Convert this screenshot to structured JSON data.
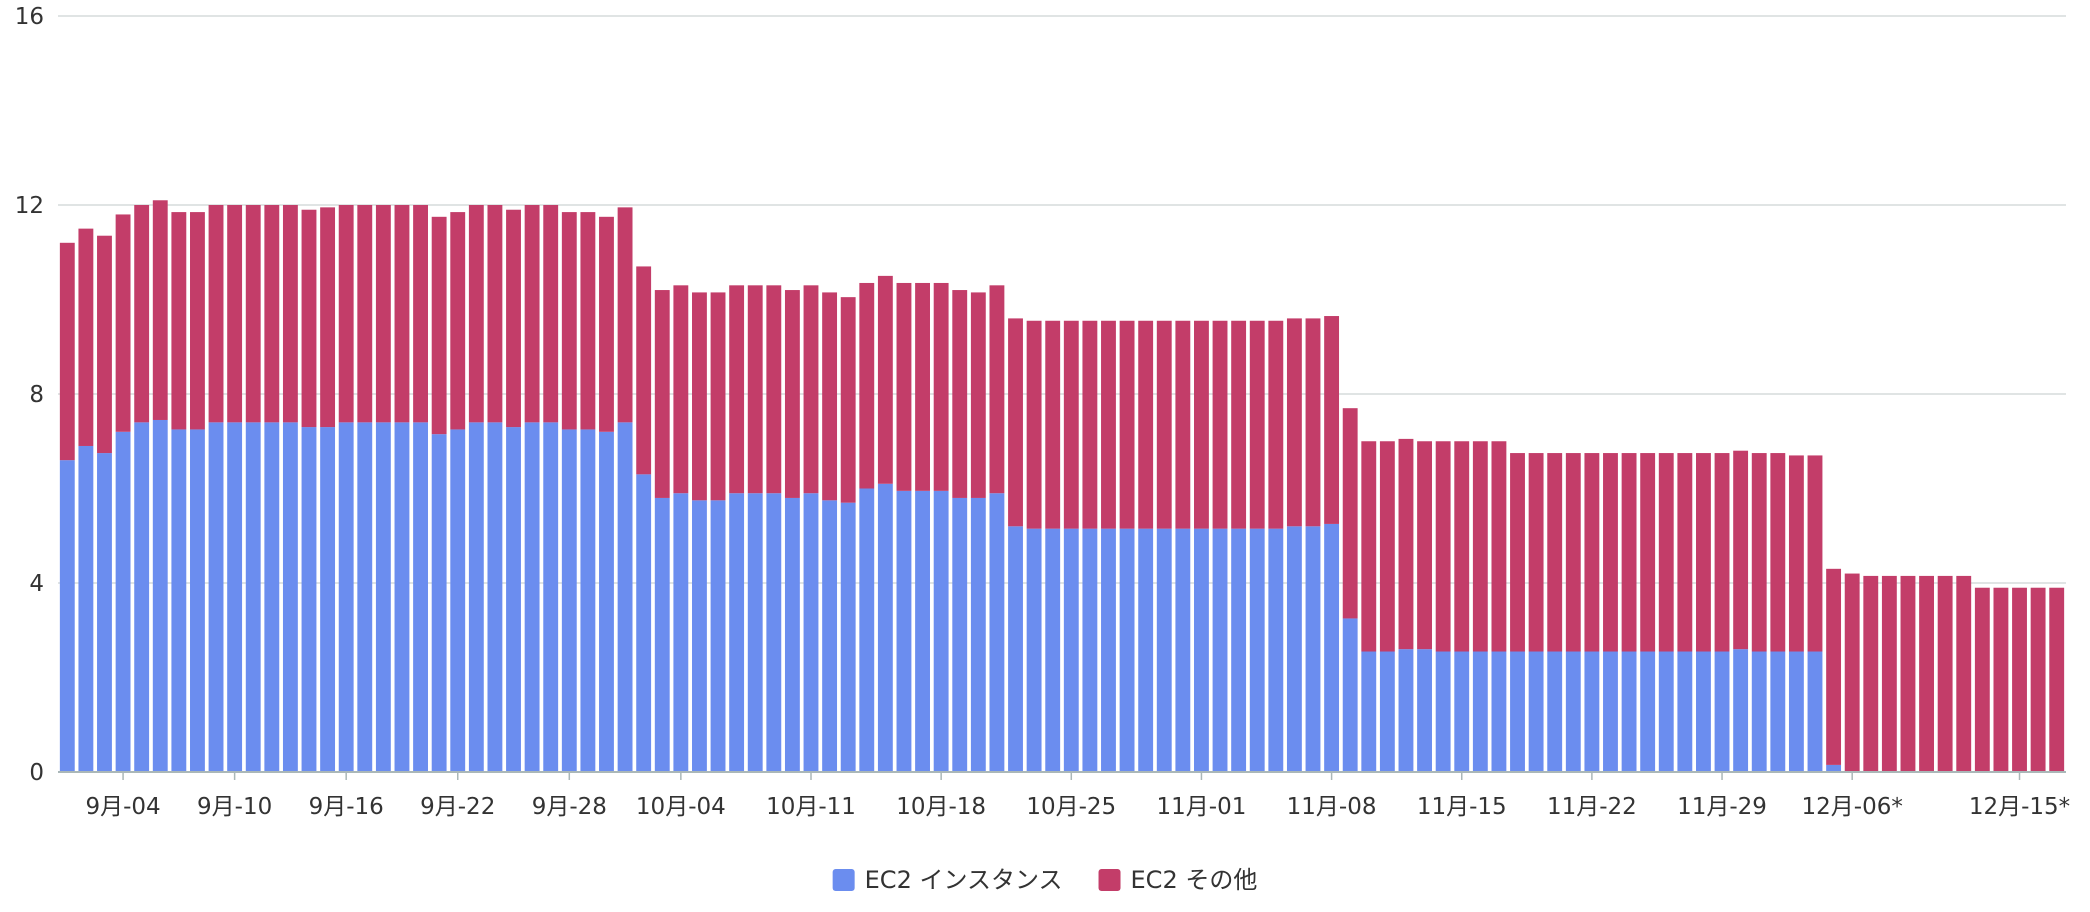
{
  "chart_data": {
    "type": "bar",
    "stacked": true,
    "ylim": [
      0,
      16
    ],
    "yticks": [
      0,
      4,
      8,
      12,
      16
    ],
    "grid": true,
    "legend_placement": "bottom-center",
    "x": [
      "09-01",
      "09-02",
      "09-03",
      "09-04",
      "09-05",
      "09-06",
      "09-07",
      "09-08",
      "09-09",
      "09-10",
      "09-11",
      "09-12",
      "09-13",
      "09-14",
      "09-15",
      "09-16",
      "09-17",
      "09-18",
      "09-19",
      "09-20",
      "09-21",
      "09-22",
      "09-23",
      "09-24",
      "09-25",
      "09-26",
      "09-27",
      "09-28",
      "09-29",
      "09-30",
      "10-01",
      "10-02",
      "10-03",
      "10-04",
      "10-05",
      "10-06",
      "10-07",
      "10-08",
      "10-09",
      "10-10",
      "10-11",
      "10-12",
      "10-13",
      "10-14",
      "10-15",
      "10-16",
      "10-17",
      "10-18",
      "10-19",
      "10-20",
      "10-21",
      "10-22",
      "10-23",
      "10-24",
      "10-25",
      "10-26",
      "10-27",
      "10-28",
      "10-29",
      "10-30",
      "10-31",
      "11-01",
      "11-02",
      "11-03",
      "11-04",
      "11-05",
      "11-06",
      "11-07",
      "11-08",
      "11-09",
      "11-10",
      "11-11",
      "11-12",
      "11-13",
      "11-14",
      "11-15",
      "11-16",
      "11-17",
      "11-18",
      "11-19",
      "11-20",
      "11-21",
      "11-22",
      "11-23",
      "11-24",
      "11-25",
      "11-26",
      "11-27",
      "11-28",
      "11-29",
      "11-30",
      "12-01",
      "12-02",
      "12-03",
      "12-04",
      "12-05",
      "12-06",
      "12-07",
      "12-08",
      "12-09",
      "12-10",
      "12-11",
      "12-12",
      "12-13",
      "12-14",
      "12-15",
      "12-16",
      "12-17"
    ],
    "x_tick_labels": [
      {
        "index": 3,
        "label": "9月-04"
      },
      {
        "index": 9,
        "label": "9月-10"
      },
      {
        "index": 15,
        "label": "9月-16"
      },
      {
        "index": 21,
        "label": "9月-22"
      },
      {
        "index": 27,
        "label": "9月-28"
      },
      {
        "index": 33,
        "label": "10月-04"
      },
      {
        "index": 40,
        "label": "10月-11"
      },
      {
        "index": 47,
        "label": "10月-18"
      },
      {
        "index": 54,
        "label": "10月-25"
      },
      {
        "index": 61,
        "label": "11月-01"
      },
      {
        "index": 68,
        "label": "11月-08"
      },
      {
        "index": 75,
        "label": "11月-15"
      },
      {
        "index": 82,
        "label": "11月-22"
      },
      {
        "index": 89,
        "label": "11月-29"
      },
      {
        "index": 96,
        "label": "12月-06*"
      },
      {
        "index": 105,
        "label": "12月-15*"
      }
    ],
    "series": [
      {
        "name": "EC2 インスタンス",
        "color": "#6b8def",
        "values": [
          6.6,
          6.9,
          6.75,
          7.2,
          7.4,
          7.45,
          7.25,
          7.25,
          7.4,
          7.4,
          7.4,
          7.4,
          7.4,
          7.3,
          7.3,
          7.4,
          7.4,
          7.4,
          7.4,
          7.4,
          7.15,
          7.25,
          7.4,
          7.4,
          7.3,
          7.4,
          7.4,
          7.25,
          7.25,
          7.2,
          7.4,
          6.3,
          5.8,
          5.9,
          5.75,
          5.75,
          5.9,
          5.9,
          5.9,
          5.8,
          5.9,
          5.75,
          5.7,
          6.0,
          6.1,
          5.95,
          5.95,
          5.95,
          5.8,
          5.8,
          5.9,
          5.2,
          5.15,
          5.15,
          5.15,
          5.15,
          5.15,
          5.15,
          5.15,
          5.15,
          5.15,
          5.15,
          5.15,
          5.15,
          5.15,
          5.15,
          5.2,
          5.2,
          5.25,
          3.25,
          2.55,
          2.55,
          2.6,
          2.6,
          2.55,
          2.55,
          2.55,
          2.55,
          2.55,
          2.55,
          2.55,
          2.55,
          2.55,
          2.55,
          2.55,
          2.55,
          2.55,
          2.55,
          2.55,
          2.55,
          2.6,
          2.55,
          2.55,
          2.55,
          2.55,
          0.15,
          0,
          0,
          0,
          0,
          0,
          0,
          0,
          0,
          0,
          0,
          0,
          0
        ]
      },
      {
        "name": "EC2 その他",
        "color": "#c33d69",
        "values": [
          4.6,
          4.6,
          4.6,
          4.6,
          4.6,
          4.65,
          4.6,
          4.6,
          4.6,
          4.6,
          4.6,
          4.6,
          4.6,
          4.6,
          4.65,
          4.6,
          4.6,
          4.6,
          4.6,
          4.6,
          4.6,
          4.6,
          4.6,
          4.6,
          4.6,
          4.6,
          4.6,
          4.6,
          4.6,
          4.55,
          4.55,
          4.4,
          4.4,
          4.4,
          4.4,
          4.4,
          4.4,
          4.4,
          4.4,
          4.4,
          4.4,
          4.4,
          4.35,
          4.35,
          4.4,
          4.4,
          4.4,
          4.4,
          4.4,
          4.35,
          4.4,
          4.4,
          4.4,
          4.4,
          4.4,
          4.4,
          4.4,
          4.4,
          4.4,
          4.4,
          4.4,
          4.4,
          4.4,
          4.4,
          4.4,
          4.4,
          4.4,
          4.4,
          4.4,
          4.45,
          4.45,
          4.45,
          4.45,
          4.4,
          4.45,
          4.45,
          4.45,
          4.45,
          4.2,
          4.2,
          4.2,
          4.2,
          4.2,
          4.2,
          4.2,
          4.2,
          4.2,
          4.2,
          4.2,
          4.2,
          4.2,
          4.2,
          4.2,
          4.15,
          4.15,
          4.15,
          4.2,
          4.15,
          4.15,
          4.15,
          4.15,
          4.15,
          4.15,
          3.9,
          3.9,
          3.9,
          3.9,
          3.9
        ]
      }
    ]
  }
}
